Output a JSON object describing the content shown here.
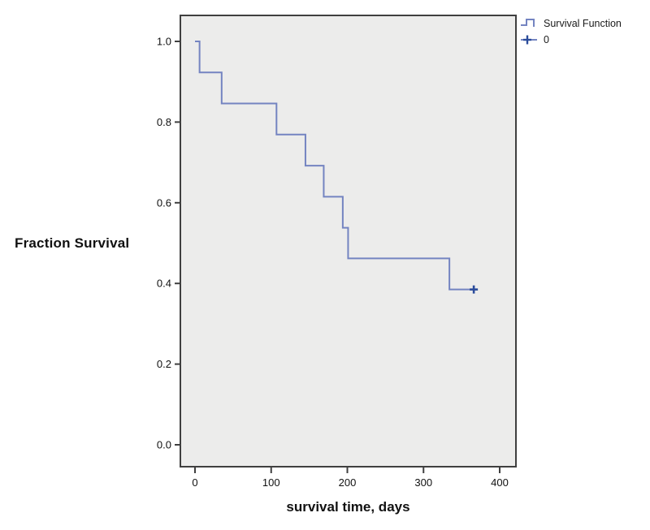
{
  "chart_data": {
    "type": "line",
    "subtype": "kaplan-meier-step",
    "title": "",
    "xlabel": "survival time, days",
    "ylabel": "Fraction Survival",
    "xlim": [
      0,
      400
    ],
    "ylim": [
      0.0,
      1.0
    ],
    "x_ticks": [
      0,
      100,
      200,
      300,
      400
    ],
    "y_ticks": [
      0.0,
      0.2,
      0.4,
      0.6,
      0.8,
      1.0
    ],
    "grid": false,
    "series": [
      {
        "name": "Survival Function",
        "x": [
          0,
          6,
          35,
          107,
          145,
          169,
          194,
          201,
          334
        ],
        "y": [
          1.0,
          0.923,
          0.846,
          0.769,
          0.692,
          0.615,
          0.538,
          0.462,
          0.385
        ]
      }
    ],
    "censored": [
      {
        "x": 366,
        "y": 0.385
      }
    ],
    "legend": {
      "position": "top-right",
      "items": [
        {
          "label": "Survival Function",
          "marker": "step-line"
        },
        {
          "label": "0",
          "marker": "plus"
        }
      ]
    },
    "colors": {
      "curve": "#7484C1",
      "censor": "#2B4C9B",
      "plot_bg": "#ECECEB",
      "frame": "#3F3F3F",
      "text": "#111111"
    }
  }
}
